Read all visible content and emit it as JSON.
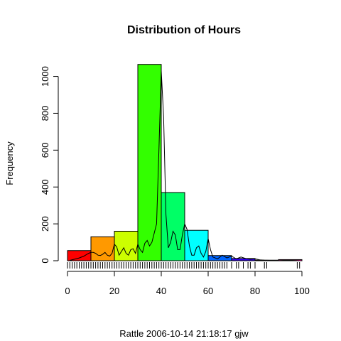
{
  "chart_data": {
    "type": "bar",
    "title": "Distribution of Hours",
    "xlabel": "",
    "ylabel": "Frequency",
    "caption": "Rattle 2006-10-14 21:18:17 gjw",
    "xlim": [
      0,
      100
    ],
    "ylim": [
      0,
      1060
    ],
    "bin_edges": [
      0,
      10,
      20,
      30,
      40,
      50,
      60,
      70,
      80,
      90,
      100
    ],
    "values": [
      55,
      130,
      160,
      1065,
      370,
      165,
      28,
      12,
      3,
      6
    ],
    "bar_colors": [
      "#FF0000",
      "#FF9900",
      "#CCFF00",
      "#33FF00",
      "#00FF66",
      "#00FFFF",
      "#0066FF",
      "#3300FF",
      "#CC00FF",
      "#FF0099"
    ],
    "x_ticks": [
      0,
      20,
      40,
      60,
      80,
      100
    ],
    "y_ticks": [
      0,
      200,
      400,
      600,
      800,
      1000
    ],
    "density_curve": {
      "x": [
        1,
        3,
        5,
        7,
        9,
        10,
        11,
        12,
        13,
        14,
        15,
        16,
        17,
        18,
        19,
        20,
        21,
        22,
        23,
        24,
        25,
        26,
        27,
        28,
        29,
        30,
        31,
        32,
        33,
        34,
        35,
        36,
        37,
        38,
        39,
        40,
        41,
        42,
        43,
        44,
        45,
        46,
        47,
        48,
        49,
        50,
        51,
        52,
        53,
        54,
        55,
        56,
        57,
        58,
        59,
        60,
        61,
        62,
        64,
        66,
        68,
        70,
        72,
        74,
        76,
        78,
        80,
        82,
        84,
        86,
        88,
        90,
        92,
        94,
        96,
        98,
        99
      ],
      "y": [
        2,
        8,
        15,
        25,
        40,
        45,
        45,
        40,
        30,
        28,
        35,
        45,
        30,
        25,
        40,
        90,
        75,
        30,
        50,
        70,
        40,
        30,
        60,
        65,
        40,
        90,
        60,
        45,
        95,
        110,
        80,
        100,
        150,
        200,
        600,
        1030,
        780,
        250,
        70,
        100,
        160,
        140,
        60,
        60,
        140,
        200,
        170,
        80,
        30,
        30,
        70,
        80,
        40,
        20,
        50,
        120,
        60,
        20,
        10,
        30,
        15,
        25,
        10,
        20,
        12,
        8,
        10,
        5,
        3,
        2,
        1,
        1,
        2,
        2,
        2,
        1,
        0
      ]
    },
    "rug_x": [
      0,
      1,
      2,
      3,
      4,
      5,
      6,
      7,
      8,
      9,
      10,
      11,
      12,
      13,
      14,
      15,
      16,
      17,
      18,
      19,
      20,
      21,
      22,
      23,
      24,
      25,
      26,
      27,
      28,
      29,
      30,
      31,
      32,
      33,
      34,
      35,
      36,
      37,
      38,
      39,
      40,
      41,
      42,
      43,
      44,
      45,
      46,
      47,
      48,
      49,
      50,
      51,
      52,
      53,
      54,
      55,
      56,
      57,
      58,
      59,
      60,
      61,
      62,
      63,
      64,
      65,
      66,
      67,
      68,
      70,
      72,
      73,
      75,
      77,
      78,
      80,
      84,
      85,
      98,
      99
    ],
    "grid": false,
    "legend": "none"
  }
}
